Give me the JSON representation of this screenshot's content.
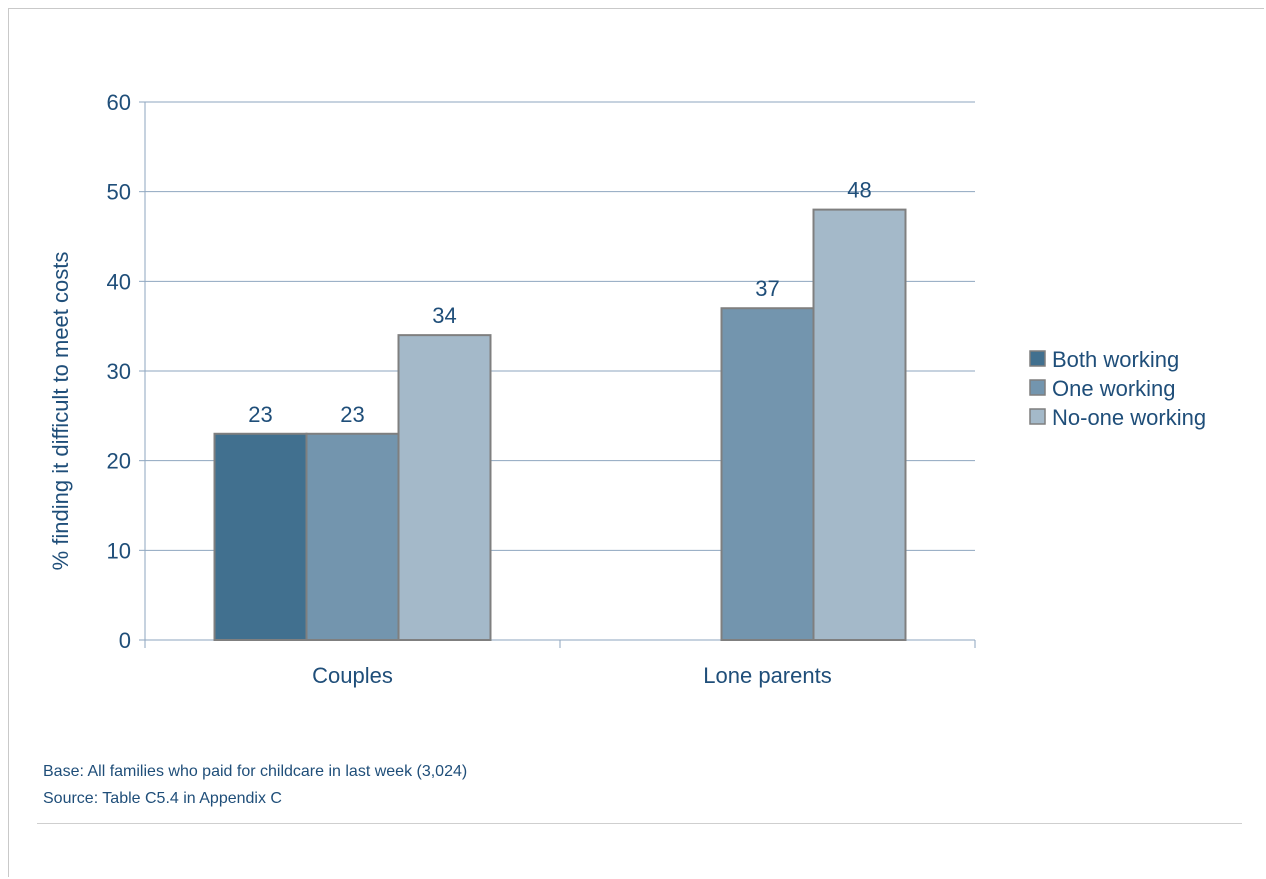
{
  "chart_data": {
    "type": "bar",
    "categories": [
      "Couples",
      "Lone parents"
    ],
    "series": [
      {
        "name": "Both working",
        "values": [
          23,
          null
        ],
        "color": "#41708f"
      },
      {
        "name": "One working",
        "values": [
          23,
          37
        ],
        "color": "#7395ae"
      },
      {
        "name": "No-one working",
        "values": [
          34,
          48
        ],
        "color": "#a4b9c9"
      }
    ],
    "title": "",
    "xlabel": "",
    "ylabel": "% finding it difficult to meet costs",
    "ylim": [
      0,
      60
    ],
    "yticks": [
      0,
      10,
      20,
      30,
      40,
      50,
      60
    ],
    "grid": true,
    "legend": "right",
    "data_labels": true,
    "text_color": "#1f4e79",
    "grid_color": "#8ea6bf",
    "bar_border_color": "#7f7f7f"
  },
  "notes": {
    "base": "Base: All families who paid for childcare in last week (3,024)",
    "source": "Source: Table C5.4 in Appendix C"
  }
}
